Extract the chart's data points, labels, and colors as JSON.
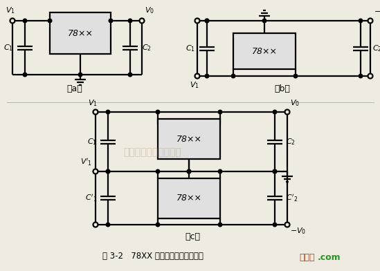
{
  "bg_color": "#f0ebe0",
  "line_color": "#000000",
  "box_fc": "#e0e0e0",
  "lw": 1.6,
  "fig_width": 5.49,
  "fig_height": 3.92,
  "caption": "图 3-2   78XX 系列稳压器的基本接法",
  "watermark": "杭州络奎科技有限公司",
  "brand1": "接线图",
  "brand2": ".com"
}
